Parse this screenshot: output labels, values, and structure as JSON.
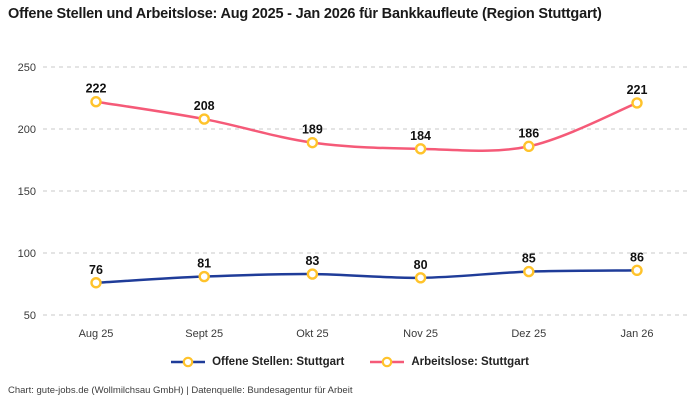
{
  "title": "Offene Stellen und Arbeitslose: Aug 2025 - Jan 2026 für Bankkaufleute (Region Stuttgart)",
  "footer": "Chart: gute-jobs.de (Wollmilchsau GmbH) | Datenquelle: Bundesagentur für Arbeit",
  "colors": {
    "open_positions_line": "#1f3c99",
    "unemployed_line": "#f55a78",
    "marker_ring": "#ffc32b",
    "marker_fill": "#ffffff",
    "gridline": "#c9c9c9",
    "axis_text": "#3a3a3a",
    "data_label_text": "#111111"
  },
  "chart_data": {
    "type": "line",
    "title": "Offene Stellen und Arbeitslose: Aug 2025 - Jan 2026 für Bankkaufleute (Region Stuttgart)",
    "categories": [
      "Aug 25",
      "Sept 25",
      "Okt 25",
      "Nov 25",
      "Dez 25",
      "Jan 26"
    ],
    "series": [
      {
        "name": "Offene Stellen: Stuttgart",
        "values": [
          76,
          81,
          83,
          80,
          85,
          86
        ],
        "color": "#1f3c99"
      },
      {
        "name": "Arbeitslose: Stuttgart",
        "values": [
          222,
          208,
          189,
          184,
          186,
          221
        ],
        "color": "#f55a78"
      }
    ],
    "ylim": [
      50,
      250
    ],
    "yticks": [
      50,
      100,
      150,
      200,
      250
    ],
    "xlabel": "",
    "ylabel": "",
    "grid": "horizontal-dashed",
    "line_style": "smooth",
    "marker": "circle-yellow-ring-white-fill",
    "data_labels": "above-points",
    "legend_position": "bottom"
  },
  "legend": {
    "items": [
      {
        "label": "Offene Stellen: Stuttgart",
        "color": "#1f3c99"
      },
      {
        "label": "Arbeitslose: Stuttgart",
        "color": "#f55a78"
      }
    ]
  }
}
